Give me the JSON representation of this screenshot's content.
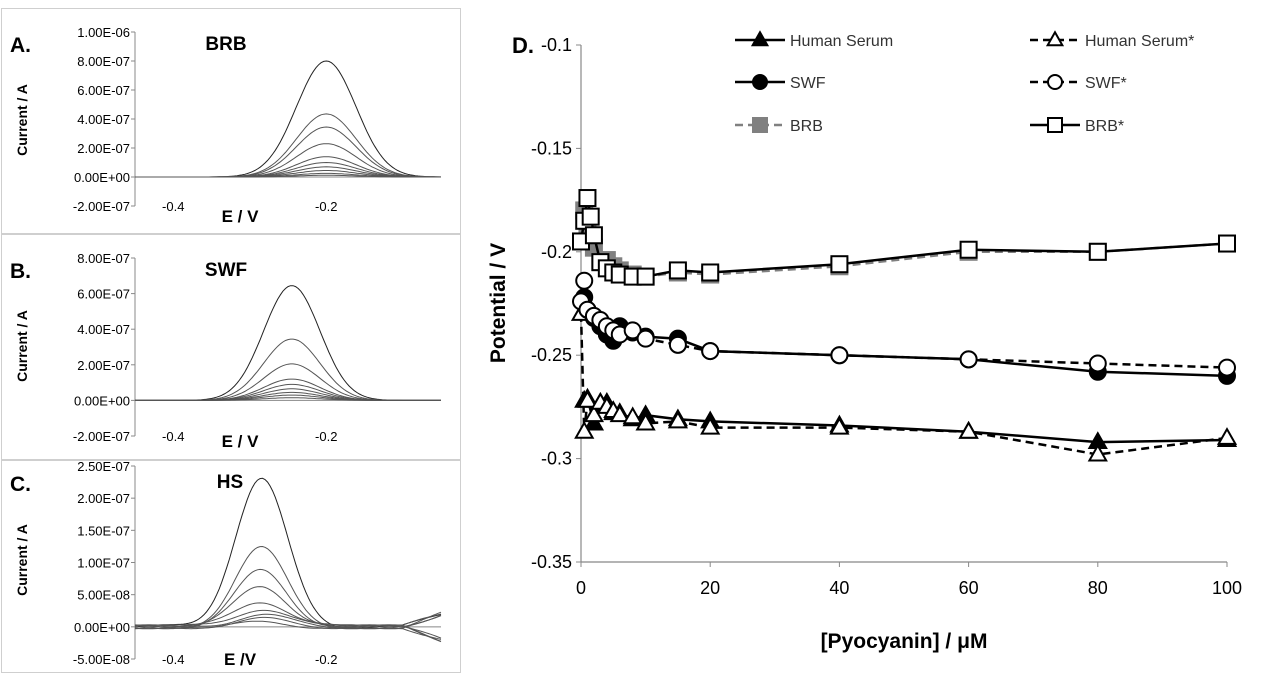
{
  "chart_data": [
    {
      "panel_label": "A.",
      "name": "BRB",
      "type": "line",
      "xlabel": "E / V",
      "ylabel": "Current / A",
      "x_ticks": [
        "-0.4",
        "-0.2"
      ],
      "y_ticks": [
        "1.00E-06",
        "8.00E-07",
        "6.00E-07",
        "4.00E-07",
        "2.00E-07",
        "0.00E+00",
        "-2.00E-07"
      ],
      "xlim": [
        -0.45,
        -0.05
      ],
      "ylim": [
        -2e-07,
        1e-06
      ],
      "peak_x": -0.2,
      "peak_width": 0.055,
      "peak_heights": [
        8e-07,
        4.35e-07,
        3.45e-07,
        2.3e-07,
        1.4e-07,
        1e-07,
        7e-08,
        4.5e-08,
        2.5e-08,
        1.2e-08
      ]
    },
    {
      "panel_label": "B.",
      "name": "SWF",
      "type": "line",
      "xlabel": "E / V",
      "ylabel": "Current / A",
      "x_ticks": [
        "-0.4",
        "-0.2"
      ],
      "y_ticks": [
        "8.00E-07",
        "6.00E-07",
        "4.00E-07",
        "2.00E-07",
        "0.00E+00",
        "-2.00E-07"
      ],
      "xlim": [
        -0.45,
        -0.05
      ],
      "ylim": [
        -2e-07,
        8e-07
      ],
      "peak_x": -0.245,
      "peak_width": 0.052,
      "peak_heights": [
        6.45e-07,
        3.45e-07,
        2.05e-07,
        1.2e-07,
        9e-08,
        6.5e-08,
        4.5e-08,
        3e-08,
        1.5e-08
      ]
    },
    {
      "panel_label": "C.",
      "name": "HS",
      "type": "line",
      "xlabel": "E /V",
      "ylabel": "Current / A",
      "x_ticks": [
        "-0.4",
        "-0.2"
      ],
      "y_ticks": [
        "2.50E-07",
        "2.00E-07",
        "1.50E-07",
        "1.00E-07",
        "5.00E-08",
        "0.00E+00",
        "-5.00E-08"
      ],
      "xlim": [
        -0.45,
        -0.05
      ],
      "ylim": [
        -5e-08,
        2.5e-07
      ],
      "peak_x": -0.285,
      "peak_width": 0.048,
      "peak_heights": [
        2.3e-07,
        1.22e-07,
        8.7e-08,
        6.3e-08,
        4e-08,
        2.8e-08,
        1.9e-08,
        1.2e-08,
        6e-09
      ]
    },
    {
      "panel_label": "D.",
      "type": "line",
      "xlabel": "[Pyocyanin] / μM",
      "ylabel": "Potential / V",
      "xlim": [
        0,
        100
      ],
      "ylim": [
        -0.35,
        -0.1
      ],
      "x_ticks": [
        "0",
        "20",
        "40",
        "60",
        "80",
        "100"
      ],
      "y_ticks": [
        "-0.1",
        "-0.15",
        "-0.2",
        "-0.25",
        "-0.3",
        "-0.35"
      ],
      "legend": [
        "Human Serum",
        "Human Serum*",
        "SWF",
        "SWF*",
        "BRB",
        "BRB*"
      ],
      "series": [
        {
          "name": "Human Serum",
          "marker": "triangle",
          "filled": true,
          "dash": false,
          "color": "#000000",
          "x": [
            0.5,
            1,
            2,
            3,
            4,
            5,
            6,
            8,
            10,
            15,
            20,
            40,
            60,
            80,
            100
          ],
          "y": [
            -0.272,
            -0.271,
            -0.283,
            -0.273,
            -0.273,
            -0.278,
            -0.278,
            -0.281,
            -0.279,
            -0.281,
            -0.282,
            -0.284,
            -0.287,
            -0.292,
            -0.291
          ]
        },
        {
          "name": "Human Serum*",
          "marker": "triangle",
          "filled": false,
          "dash": true,
          "color": "#000000",
          "x": [
            0,
            0.5,
            1,
            2,
            3,
            4,
            5,
            6,
            8,
            10,
            15,
            20,
            40,
            60,
            80,
            100
          ],
          "y": [
            -0.23,
            -0.287,
            -0.272,
            -0.279,
            -0.273,
            -0.275,
            -0.277,
            -0.279,
            -0.28,
            -0.283,
            -0.282,
            -0.285,
            -0.285,
            -0.287,
            -0.298,
            -0.29
          ]
        },
        {
          "name": "SWF",
          "marker": "circle",
          "filled": true,
          "dash": false,
          "color": "#000000",
          "x": [
            0.5,
            1,
            2,
            3,
            4,
            5,
            6,
            8,
            10,
            15,
            20,
            40,
            60,
            80,
            100
          ],
          "y": [
            -0.222,
            -0.228,
            -0.232,
            -0.236,
            -0.24,
            -0.243,
            -0.236,
            -0.239,
            -0.241,
            -0.242,
            -0.248,
            -0.25,
            -0.252,
            -0.258,
            -0.26
          ]
        },
        {
          "name": "SWF*",
          "marker": "circle",
          "filled": false,
          "dash": true,
          "color": "#000000",
          "x": [
            0,
            0.5,
            1,
            2,
            3,
            4,
            5,
            6,
            8,
            10,
            15,
            20,
            40,
            60,
            80,
            100
          ],
          "y": [
            -0.224,
            -0.214,
            -0.228,
            -0.231,
            -0.233,
            -0.236,
            -0.238,
            -0.24,
            -0.238,
            -0.242,
            -0.245,
            -0.248,
            -0.25,
            -0.252,
            -0.254,
            -0.256
          ]
        },
        {
          "name": "BRB",
          "marker": "square",
          "filled": true,
          "dash": true,
          "color": "#808080",
          "x": [
            0.5,
            1,
            2,
            3,
            4,
            5,
            6,
            8,
            10,
            15,
            20,
            40,
            60,
            80,
            100
          ],
          "y": [
            -0.18,
            -0.188,
            -0.198,
            -0.205,
            -0.204,
            -0.207,
            -0.209,
            -0.211,
            -0.212,
            -0.21,
            -0.211,
            -0.207,
            -0.2,
            -0.2,
            -0.196
          ]
        },
        {
          "name": "BRB*",
          "marker": "square",
          "filled": false,
          "dash": false,
          "color": "#000000",
          "x": [
            0,
            0.5,
            1,
            1.5,
            2,
            3,
            4,
            5,
            6,
            8,
            10,
            15,
            20,
            40,
            60,
            80,
            100
          ],
          "y": [
            -0.195,
            -0.185,
            -0.174,
            -0.183,
            -0.192,
            -0.205,
            -0.208,
            -0.21,
            -0.211,
            -0.212,
            -0.212,
            -0.209,
            -0.21,
            -0.206,
            -0.199,
            -0.2,
            -0.196
          ]
        }
      ]
    }
  ]
}
